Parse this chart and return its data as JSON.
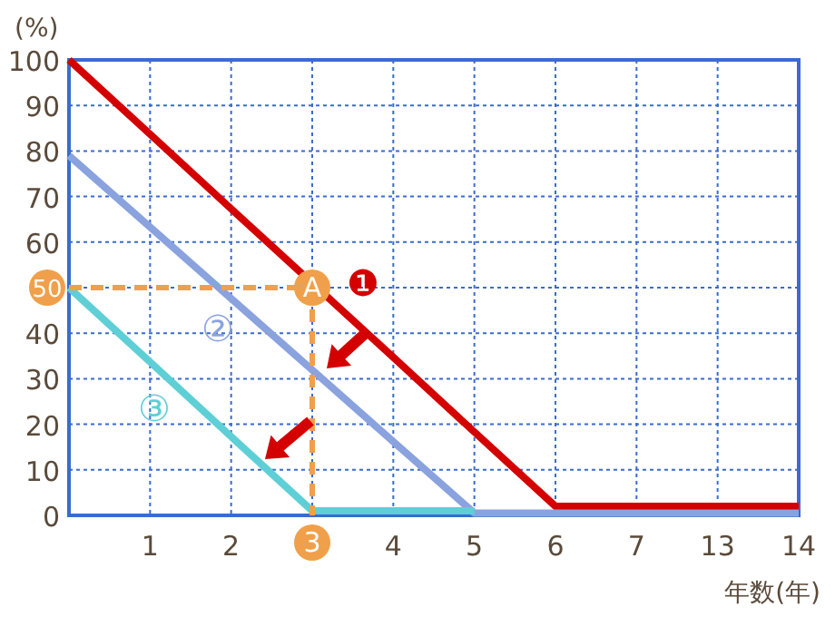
{
  "chart_data": {
    "type": "line",
    "xlabel": "年数(年)",
    "ylabel": "(%)",
    "categories": [
      null,
      "1",
      "2",
      "3",
      "4",
      "5",
      "6",
      "7",
      "13",
      "14"
    ],
    "ylim": [
      0,
      100
    ],
    "yticks": [
      0,
      10,
      20,
      30,
      40,
      50,
      60,
      70,
      80,
      90,
      100
    ],
    "grid": true,
    "series": [
      {
        "color": "#d40000",
        "values": [
          100,
          83.7,
          67.3,
          null,
          34.7,
          18.3,
          2,
          2,
          2,
          2
        ]
      },
      {
        "color": "#8aa3de",
        "values": [
          79,
          63.3,
          47.6,
          31.9,
          16.2,
          0.5,
          0.5,
          0.5,
          0.5,
          0.5
        ]
      },
      {
        "color": "#5fcfd6",
        "values": [
          50,
          33.7,
          17.3,
          1,
          1,
          1,
          null,
          null,
          null,
          null
        ]
      },
      {
        "color": "#f0a04a",
        "line_style": "dashed",
        "values": [
          50,
          50,
          50,
          50,
          null,
          null,
          null,
          null,
          null,
          null
        ]
      },
      {
        "color": "#f0a04a",
        "line_style": "dashed",
        "x": [
          "3",
          "3"
        ],
        "values": [
          50,
          0
        ]
      }
    ],
    "annotations": [
      {
        "text": "A",
        "x": "3",
        "y": 50
      },
      "❶",
      "②",
      "③"
    ]
  }
}
